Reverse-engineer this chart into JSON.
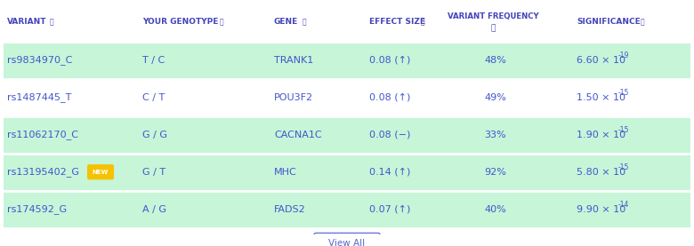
{
  "headers": [
    "VARIANT",
    "YOUR GENOTYPE",
    "GENE",
    "EFFECT SIZE",
    "VARIANT FREQUENCY",
    "SIGNIFICANCE"
  ],
  "header_color": "#4444bb",
  "rows": [
    [
      "rs9834970_C",
      "T / C",
      "TRANK1",
      "0.08 (↑)",
      "48%",
      "6.60 × 10",
      "-19",
      false
    ],
    [
      "rs1487445_T",
      "C / T",
      "POU3F2",
      "0.08 (↑)",
      "49%",
      "1.50 × 10",
      "-15",
      false
    ],
    [
      "rs11062170_C",
      "G / G",
      "CACNA1C",
      "0.08 (−)",
      "33%",
      "1.90 × 10",
      "-15",
      false
    ],
    [
      "rs13195402_G",
      "G / T",
      "MHC",
      "0.14 (↑)",
      "92%",
      "5.80 × 10",
      "-15",
      true
    ],
    [
      "rs174592_G",
      "A / G",
      "FADS2",
      "0.07 (↑)",
      "40%",
      "9.90 × 10",
      "-14",
      false
    ]
  ],
  "row_bg_colors": [
    "#c6f5d8",
    "#ffffff",
    "#c6f5d8",
    "#c6f5d8",
    "#c6f5d8"
  ],
  "bg_color": "#ffffff",
  "text_color": "#4455cc",
  "new_badge_color": "#f5c200",
  "new_badge_text": "NEW",
  "button_text": "View All",
  "button_border": "#6677dd",
  "button_text_color": "#5566cc"
}
